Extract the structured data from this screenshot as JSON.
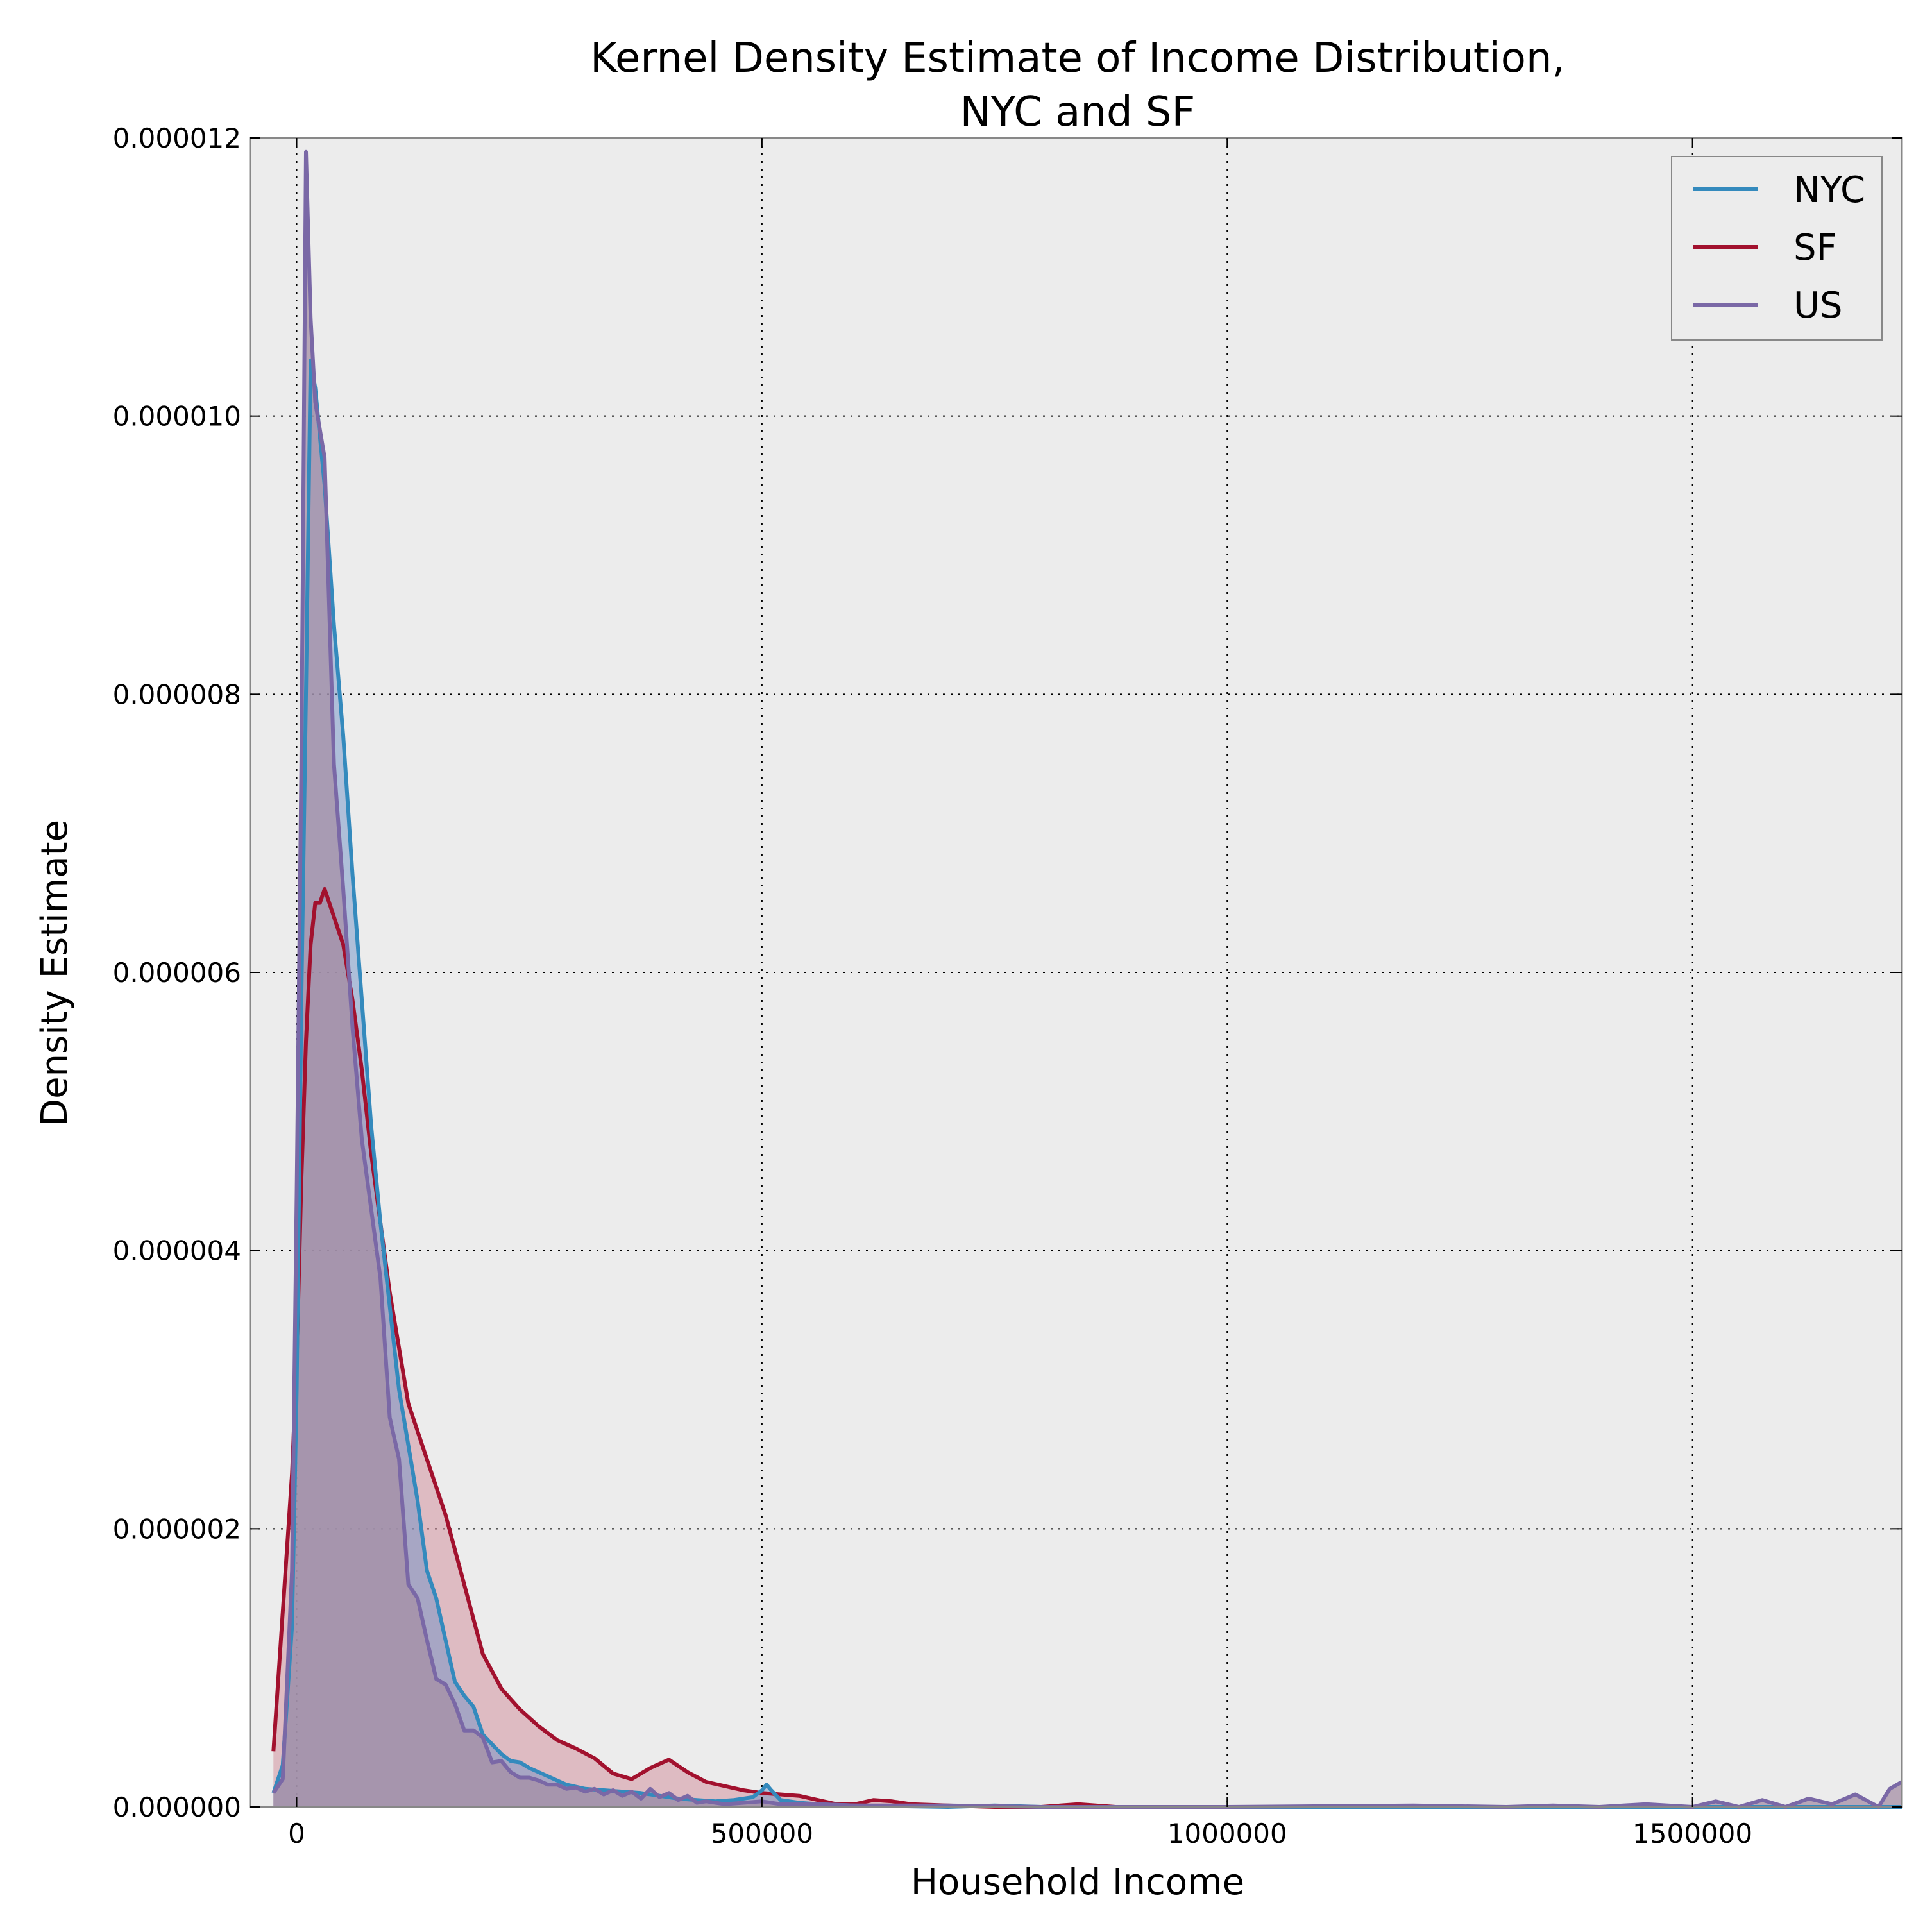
{
  "chart_data": {
    "type": "area",
    "title_lines": [
      "Kernel Density Estimate of Income Distribution,",
      "NYC and SF"
    ],
    "xlabel": "Household Income",
    "ylabel": "Density Estimate",
    "xlim": [
      -50000,
      1725000
    ],
    "ylim": [
      0,
      1.2e-05
    ],
    "xticks": [
      0,
      500000,
      1000000,
      1500000
    ],
    "xtick_labels": [
      "0",
      "500000",
      "1000000",
      "1500000"
    ],
    "yticks": [
      0,
      2e-06,
      4e-06,
      6e-06,
      8e-06,
      1e-05,
      1.2e-05
    ],
    "ytick_labels": [
      "0.000000",
      "0.000002",
      "0.000004",
      "0.000006",
      "0.000008",
      "0.000010",
      "0.000012"
    ],
    "grid": true,
    "legend_position": "top-right",
    "colors": {
      "plot_bg": "#ececec",
      "axes_edge": "#888888"
    },
    "series": [
      {
        "name": "SF",
        "color": "#a2112e",
        "fill_color": "#cf8a98",
        "fill_opacity": 0.5,
        "x": [
          -25000,
          -15000,
          -5000,
          0,
          5000,
          10000,
          15000,
          20000,
          25000,
          30000,
          35000,
          40000,
          45000,
          50000,
          60000,
          70000,
          80000,
          90000,
          100000,
          110000,
          120000,
          140000,
          160000,
          180000,
          200000,
          220000,
          240000,
          260000,
          280000,
          300000,
          320000,
          340000,
          360000,
          380000,
          400000,
          420000,
          440000,
          460000,
          480000,
          500000,
          520000,
          540000,
          560000,
          580000,
          600000,
          620000,
          640000,
          660000,
          700000,
          750000,
          800000,
          840000,
          880000,
          950000,
          1050000,
          1200000,
          1400000,
          1600000,
          1725000
        ],
        "y": [
          4e-07,
          1.4e-06,
          2.4e-06,
          3.2e-06,
          4.5e-06,
          5.5e-06,
          6.2e-06,
          6.5e-06,
          6.5e-06,
          6.6e-06,
          6.5e-06,
          6.4e-06,
          6.3e-06,
          6.2e-06,
          5.8e-06,
          5.3e-06,
          4.7e-06,
          4.2e-06,
          3.7e-06,
          3.3e-06,
          2.9e-06,
          2.5e-06,
          2.1e-06,
          1.6e-06,
          1.1e-06,
          8.5e-07,
          7e-07,
          5.8e-07,
          4.8e-07,
          4.2e-07,
          3.5e-07,
          2.4e-07,
          2e-07,
          2.8e-07,
          3.4e-07,
          2.5e-07,
          1.8e-07,
          1.5e-07,
          1.2e-07,
          1e-07,
          9e-08,
          8e-08,
          5e-08,
          2e-08,
          2e-08,
          5e-08,
          4e-08,
          2e-08,
          1e-08,
          0.0,
          0.0,
          2e-08,
          0.0,
          0.0,
          0.0,
          0.0,
          0.0,
          0.0,
          0.0
        ]
      },
      {
        "name": "NYC",
        "color": "#348abd",
        "fill_color": "#6f92c6",
        "fill_opacity": 0.5,
        "x": [
          -25000,
          -15000,
          -5000,
          0,
          5000,
          10000,
          15000,
          20000,
          30000,
          40000,
          50000,
          60000,
          70000,
          80000,
          90000,
          100000,
          110000,
          120000,
          130000,
          140000,
          150000,
          160000,
          170000,
          180000,
          190000,
          200000,
          210000,
          220000,
          230000,
          240000,
          250000,
          270000,
          290000,
          310000,
          330000,
          350000,
          370000,
          390000,
          410000,
          430000,
          450000,
          470000,
          490000,
          500000,
          505000,
          510000,
          520000,
          540000,
          560000,
          600000,
          700000,
          750000,
          800000,
          1000000,
          1200000,
          1400000,
          1600000,
          1725000
        ],
        "y": [
          1e-07,
          3e-07,
          1.3e-06,
          3e-06,
          5.8e-06,
          8e-06,
          1.04e-05,
          1.02e-05,
          9.5e-06,
          8.5e-06,
          7.7e-06,
          6.7e-06,
          5.8e-06,
          4.9e-06,
          4.2e-06,
          3.6e-06,
          3e-06,
          2.6e-06,
          2.2e-06,
          1.7e-06,
          1.5e-06,
          1.2e-06,
          9e-07,
          8e-07,
          7.2e-07,
          5.2e-07,
          4.5e-07,
          3.8e-07,
          3.3e-07,
          3.2e-07,
          2.8e-07,
          2.2e-07,
          1.6e-07,
          1.3e-07,
          1.2e-07,
          1.1e-07,
          1e-07,
          8e-08,
          6e-08,
          5e-08,
          4e-08,
          5e-08,
          7e-08,
          1.2e-07,
          1.6e-07,
          1.2e-07,
          5e-08,
          3e-08,
          2e-08,
          1e-08,
          0.0,
          1e-08,
          0.0,
          0.0,
          0.0,
          0.0,
          0.0,
          0.0
        ]
      },
      {
        "name": "US",
        "color": "#7a68a6",
        "fill_color": "#a58fa6",
        "fill_opacity": 0.75,
        "x": [
          -25000,
          -15000,
          -5000,
          0,
          5000,
          10000,
          15000,
          20000,
          30000,
          40000,
          50000,
          60000,
          70000,
          80000,
          90000,
          100000,
          110000,
          120000,
          130000,
          140000,
          150000,
          160000,
          170000,
          180000,
          190000,
          200000,
          210000,
          220000,
          230000,
          240000,
          250000,
          260000,
          270000,
          280000,
          290000,
          300000,
          310000,
          320000,
          330000,
          340000,
          350000,
          360000,
          370000,
          380000,
          390000,
          400000,
          410000,
          420000,
          430000,
          440000,
          460000,
          480000,
          500000,
          520000,
          560000,
          600000,
          700000,
          800000,
          1000000,
          1200000,
          1300000,
          1350000,
          1400000,
          1450000,
          1500000,
          1525000,
          1550000,
          1575000,
          1600000,
          1625000,
          1650000,
          1675000,
          1700000,
          1712000,
          1725000
        ],
        "y": [
          1e-07,
          2e-07,
          1.7e-06,
          4.4e-06,
          7.5e-06,
          1.19e-05,
          1.07e-05,
          1.01e-05,
          9.7e-06,
          7.5e-06,
          6.6e-06,
          5.6e-06,
          4.8e-06,
          4.3e-06,
          3.8e-06,
          2.8e-06,
          2.5e-06,
          1.6e-06,
          1.5e-06,
          1.2e-06,
          9.2e-07,
          8.8e-07,
          7.4e-07,
          5.5e-07,
          5.5e-07,
          5e-07,
          3.2e-07,
          3.3e-07,
          2.5e-07,
          2.1e-07,
          2.1e-07,
          1.9e-07,
          1.6e-07,
          1.6e-07,
          1.3e-07,
          1.4e-07,
          1.1e-07,
          1.3e-07,
          9e-08,
          1.2e-07,
          8e-08,
          1.1e-07,
          6e-08,
          1.3e-07,
          7e-08,
          1e-07,
          5e-08,
          8e-08,
          3e-08,
          4e-08,
          2e-08,
          3e-08,
          4e-08,
          2e-08,
          2e-08,
          1e-08,
          1e-08,
          0.0,
          0.0,
          1e-08,
          0.0,
          1e-08,
          0.0,
          2e-08,
          0.0,
          4e-08,
          0.0,
          5e-08,
          0.0,
          6e-08,
          2e-08,
          9e-08,
          0.0,
          1.3e-07,
          1.8e-07
        ]
      }
    ],
    "legend": [
      "NYC",
      "SF",
      "US"
    ]
  }
}
